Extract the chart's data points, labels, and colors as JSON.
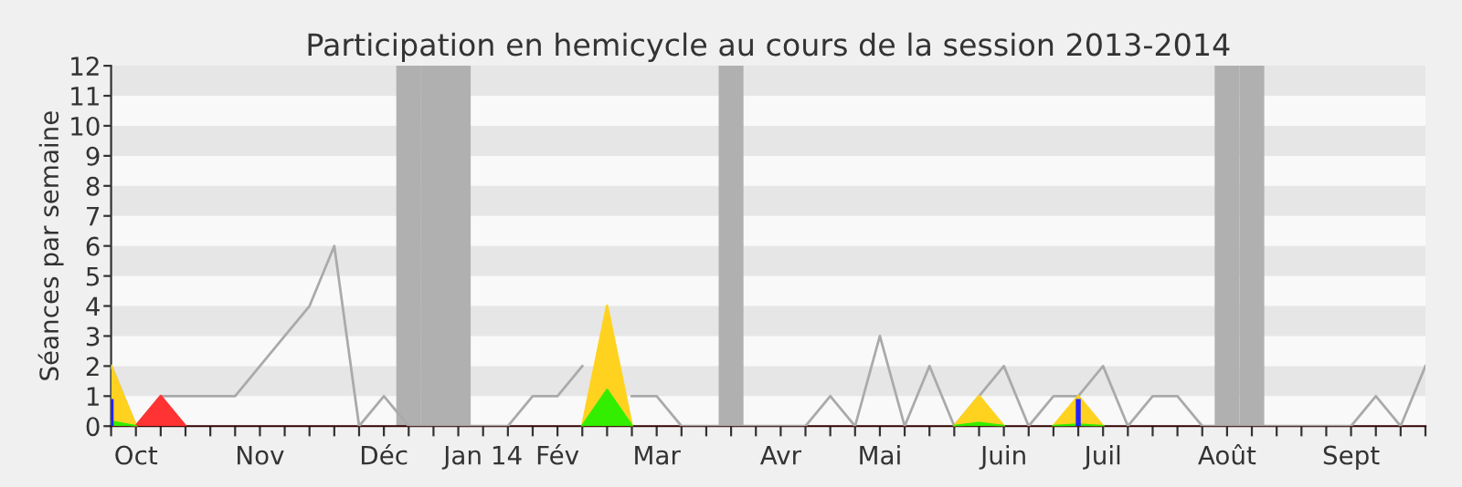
{
  "chart_data": {
    "type": "line",
    "title": "Participation en hemicycle au cours de la session 2013-2014",
    "ylabel": "Séances par semaine",
    "categories": [
      null,
      "Oct",
      null,
      null,
      null,
      null,
      "Nov",
      null,
      null,
      null,
      null,
      "Déc",
      null,
      null,
      null,
      "Jan 14",
      null,
      null,
      "Fév",
      null,
      null,
      null,
      "Mar",
      null,
      null,
      null,
      null,
      "Avr",
      null,
      null,
      null,
      "Mai",
      null,
      null,
      null,
      null,
      "Juin",
      null,
      null,
      null,
      "Juil",
      null,
      null,
      null,
      null,
      "Août",
      null,
      null,
      null,
      null,
      "Sept",
      null,
      null,
      null
    ],
    "ylim": [
      0,
      12
    ],
    "yticks": [
      0,
      1,
      2,
      3,
      4,
      5,
      6,
      7,
      8,
      9,
      10,
      11,
      12
    ],
    "grid": false,
    "legend": false,
    "bands": [
      {
        "axis": "y",
        "from": 1,
        "to": 2,
        "color": "#e6e6e6"
      },
      {
        "axis": "y",
        "from": 3,
        "to": 4,
        "color": "#e6e6e6"
      },
      {
        "axis": "y",
        "from": 5,
        "to": 6,
        "color": "#e6e6e6"
      },
      {
        "axis": "y",
        "from": 7,
        "to": 8,
        "color": "#e6e6e6"
      },
      {
        "axis": "y",
        "from": 9,
        "to": 10,
        "color": "#e6e6e6"
      },
      {
        "axis": "y",
        "from": 11,
        "to": 12,
        "color": "#e6e6e6"
      }
    ],
    "series": [
      {
        "type": "bar",
        "color": "#b0b0b0",
        "values": [
          null,
          null,
          null,
          null,
          null,
          null,
          null,
          null,
          null,
          null,
          null,
          null,
          12,
          12,
          12,
          null,
          null,
          null,
          null,
          null,
          null,
          null,
          null,
          null,
          null,
          12,
          null,
          null,
          null,
          null,
          null,
          null,
          null,
          null,
          null,
          null,
          null,
          null,
          null,
          null,
          null,
          null,
          null,
          null,
          null,
          12,
          12,
          null,
          null,
          null,
          null,
          null,
          null,
          null
        ]
      },
      {
        "color": "#aaaaaa",
        "values": [
          2,
          0,
          1,
          1,
          1,
          1,
          2,
          3,
          4,
          6,
          0,
          1,
          0,
          0,
          0,
          0,
          0,
          1,
          1,
          2,
          null,
          1,
          1,
          0,
          0,
          0,
          0,
          0,
          0,
          1,
          0,
          3,
          0,
          2,
          0,
          1,
          2,
          0,
          1,
          1,
          2,
          0,
          1,
          1,
          0,
          0,
          0,
          0,
          0,
          0,
          0,
          1,
          0,
          2
        ]
      },
      {
        "type": "area",
        "color": "#ffd21f",
        "values": [
          2,
          0,
          null,
          null,
          null,
          null,
          null,
          null,
          null,
          null,
          null,
          null,
          null,
          null,
          null,
          null,
          null,
          null,
          null,
          0,
          4,
          0,
          null,
          null,
          null,
          null,
          null,
          null,
          null,
          null,
          null,
          null,
          null,
          null,
          0,
          1,
          0,
          null,
          0,
          1,
          0,
          null,
          null,
          null,
          null,
          null,
          null,
          null,
          null,
          null,
          null,
          null,
          null,
          null
        ]
      },
      {
        "type": "area",
        "color": "#ff3333",
        "values": [
          null,
          0,
          1,
          0,
          null,
          null,
          null,
          null,
          null,
          null,
          null,
          null,
          null,
          null,
          null,
          null,
          null,
          null,
          null,
          null,
          null,
          null,
          null,
          null,
          null,
          null,
          null,
          null,
          null,
          null,
          null,
          null,
          null,
          null,
          null,
          null,
          null,
          null,
          null,
          null,
          null,
          null,
          null,
          null,
          null,
          null,
          null,
          null,
          null,
          null,
          null,
          null,
          null,
          null
        ]
      },
      {
        "type": "area",
        "color": "#33ee00",
        "values": [
          0.15,
          0,
          null,
          null,
          null,
          null,
          null,
          null,
          null,
          null,
          null,
          null,
          null,
          null,
          null,
          null,
          null,
          null,
          null,
          0,
          1.2,
          0,
          null,
          null,
          null,
          null,
          null,
          null,
          null,
          null,
          null,
          null,
          null,
          null,
          0,
          0.1,
          0,
          null,
          0,
          0.05,
          0,
          null,
          null,
          null,
          null,
          null,
          null,
          null,
          null,
          null,
          null,
          null,
          null,
          null
        ]
      },
      {
        "type": "bar",
        "color": "#2222ff",
        "values": [
          0.9,
          null,
          null,
          null,
          null,
          null,
          null,
          null,
          null,
          null,
          null,
          null,
          null,
          null,
          null,
          null,
          null,
          null,
          null,
          null,
          null,
          null,
          null,
          null,
          null,
          null,
          null,
          null,
          null,
          null,
          null,
          null,
          null,
          null,
          null,
          null,
          null,
          null,
          null,
          0.9,
          null,
          null,
          null,
          null,
          null,
          null,
          null,
          null,
          null,
          null,
          null,
          null,
          null,
          null
        ]
      }
    ]
  }
}
